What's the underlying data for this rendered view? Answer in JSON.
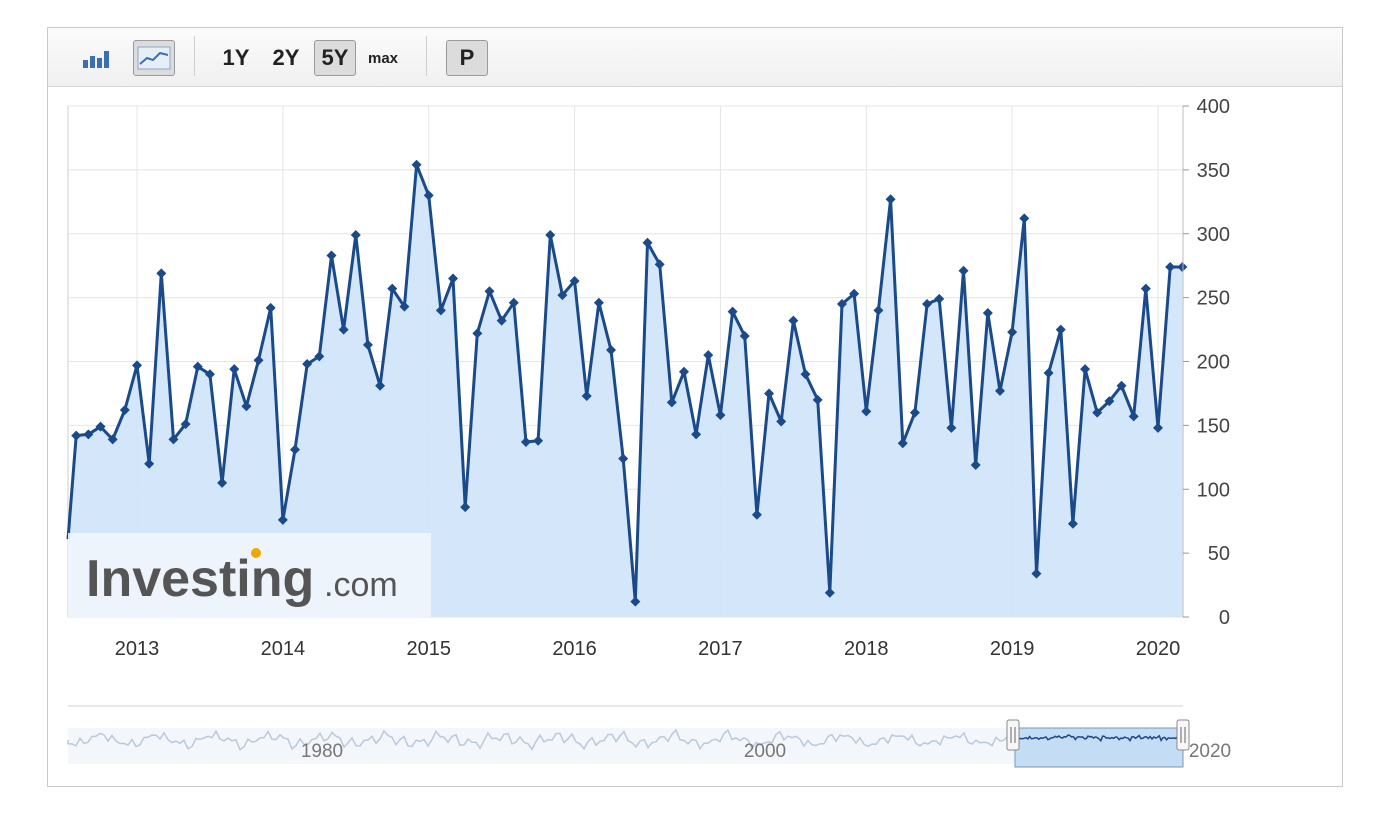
{
  "toolbar": {
    "bar_chart_icon": "bar-chart-icon",
    "line_chart_icon": "line-chart-icon",
    "range_1y": "1Y",
    "range_2y": "2Y",
    "range_5y": "5Y",
    "range_max": "max",
    "p_label": "P",
    "active_range": "5Y"
  },
  "watermark": {
    "brand": "Investing",
    "suffix": ".com"
  },
  "colors": {
    "line": "#1a4a8a",
    "area": "#cfe3f8",
    "navigator_fill": "#c5dcf5",
    "accent_dot": "#f0a800"
  },
  "navigator": {
    "labels": [
      "1980",
      "2000",
      "2020"
    ]
  },
  "chart_data": {
    "type": "area",
    "title": "",
    "xlabel": "",
    "ylabel": "",
    "ylim": [
      0,
      400
    ],
    "yticks": [
      0,
      50,
      100,
      150,
      200,
      250,
      300,
      350,
      400
    ],
    "xticks": [
      "2013",
      "2014",
      "2015",
      "2016",
      "2017",
      "2018",
      "2019",
      "2020"
    ],
    "grid": true,
    "y_axis_side": "right",
    "x_start": "2012-07",
    "x_step": "1 month",
    "series": [
      {
        "values": [
          61,
          142,
          143,
          149,
          139,
          162,
          197,
          120,
          269,
          139,
          151,
          196,
          190,
          105,
          194,
          165,
          201,
          242,
          76,
          131,
          198,
          204,
          283,
          225,
          299,
          213,
          181,
          257,
          243,
          354,
          330,
          240,
          265,
          86,
          222,
          255,
          232,
          246,
          137,
          138,
          299,
          252,
          263,
          173,
          246,
          209,
          124,
          12,
          293,
          276,
          168,
          192,
          143,
          205,
          158,
          239,
          220,
          80,
          175,
          153,
          232,
          190,
          170,
          19,
          245,
          253,
          161,
          240,
          327,
          136,
          160,
          245,
          249,
          148,
          271,
          119,
          238,
          177,
          223,
          312,
          34,
          191,
          225,
          73,
          194,
          160,
          169,
          181,
          157,
          257,
          148,
          274,
          274
        ]
      }
    ]
  }
}
